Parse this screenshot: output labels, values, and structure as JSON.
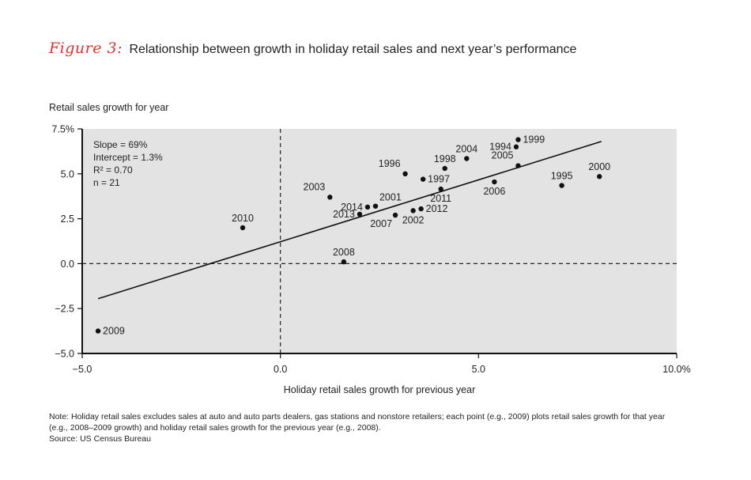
{
  "figure": {
    "label": "Figure 3:",
    "title": "Relationship between growth in holiday retail sales and next year’s performance"
  },
  "chart_data": {
    "type": "scatter",
    "title": "Relationship between growth in holiday retail sales and next year’s performance",
    "xlabel": "Holiday retail sales growth for previous year",
    "ylabel": "Retail sales growth for year",
    "xlim": [
      -5.0,
      10.0
    ],
    "ylim": [
      -5.0,
      7.5
    ],
    "x_ticks": [
      {
        "value": -5.0,
        "label": "−5.0"
      },
      {
        "value": 0.0,
        "label": "0.0"
      },
      {
        "value": 5.0,
        "label": "5.0"
      },
      {
        "value": 10.0,
        "label": "10.0%"
      }
    ],
    "y_ticks": [
      {
        "value": 7.5,
        "label": "7.5%"
      },
      {
        "value": 5.0,
        "label": "5.0"
      },
      {
        "value": 2.5,
        "label": "2.5"
      },
      {
        "value": 0.0,
        "label": "0.0"
      },
      {
        "value": -2.5,
        "label": "−2.5"
      },
      {
        "value": -5.0,
        "label": "−5.0"
      }
    ],
    "points": [
      {
        "label": "1994",
        "x": 5.95,
        "y": 6.5,
        "pos": "left"
      },
      {
        "label": "1995",
        "x": 7.1,
        "y": 4.35,
        "pos": "above"
      },
      {
        "label": "1996",
        "x": 3.15,
        "y": 5.0,
        "pos": "above-left"
      },
      {
        "label": "1997",
        "x": 3.6,
        "y": 4.7,
        "pos": "right"
      },
      {
        "label": "1998",
        "x": 4.15,
        "y": 5.3,
        "pos": "above"
      },
      {
        "label": "1999",
        "x": 6.0,
        "y": 6.9,
        "pos": "right"
      },
      {
        "label": "2000",
        "x": 8.05,
        "y": 4.85,
        "pos": "above"
      },
      {
        "label": "2001",
        "x": 2.4,
        "y": 3.2,
        "pos": "above-right"
      },
      {
        "label": "2002",
        "x": 3.35,
        "y": 2.95,
        "pos": "below"
      },
      {
        "label": "2003",
        "x": 1.25,
        "y": 3.7,
        "pos": "above-left"
      },
      {
        "label": "2004",
        "x": 4.7,
        "y": 5.85,
        "pos": "above"
      },
      {
        "label": "2005",
        "x": 6.0,
        "y": 5.45,
        "pos": "above-left"
      },
      {
        "label": "2006",
        "x": 5.4,
        "y": 4.55,
        "pos": "below"
      },
      {
        "label": "2007",
        "x": 2.9,
        "y": 2.7,
        "pos": "below-left"
      },
      {
        "label": "2008",
        "x": 1.6,
        "y": 0.1,
        "pos": "above"
      },
      {
        "label": "2009",
        "x": -4.6,
        "y": -3.75,
        "pos": "right"
      },
      {
        "label": "2010",
        "x": -0.95,
        "y": 2.0,
        "pos": "above"
      },
      {
        "label": "2011",
        "x": 4.05,
        "y": 4.15,
        "pos": "below"
      },
      {
        "label": "2012",
        "x": 3.55,
        "y": 3.05,
        "pos": "right"
      },
      {
        "label": "2013",
        "x": 2.0,
        "y": 2.75,
        "pos": "left"
      },
      {
        "label": "2014",
        "x": 2.2,
        "y": 3.15,
        "pos": "left"
      }
    ],
    "regression": {
      "x_start": -4.6,
      "y_start": -1.95,
      "x_end": 8.1,
      "y_end": 6.8
    },
    "stats": [
      "Slope = 69%",
      "Intercept = 1.3%",
      "R² = 0.70",
      "n = 21"
    ]
  },
  "note": {
    "line1": "Note: Holiday retail sales excludes sales at auto and auto parts dealers, gas stations and nonstore retailers; each point (e.g., 2009) plots retail sales growth for that year",
    "line2": "(e.g., 2008–2009 growth) and holiday retail sales growth for the previous year (e.g., 2008).",
    "source": "Source: US Census Bureau"
  },
  "colors": {
    "title_accent": "#e5302b",
    "plot_bg": "#e3e3e3",
    "marker": "#111111"
  }
}
